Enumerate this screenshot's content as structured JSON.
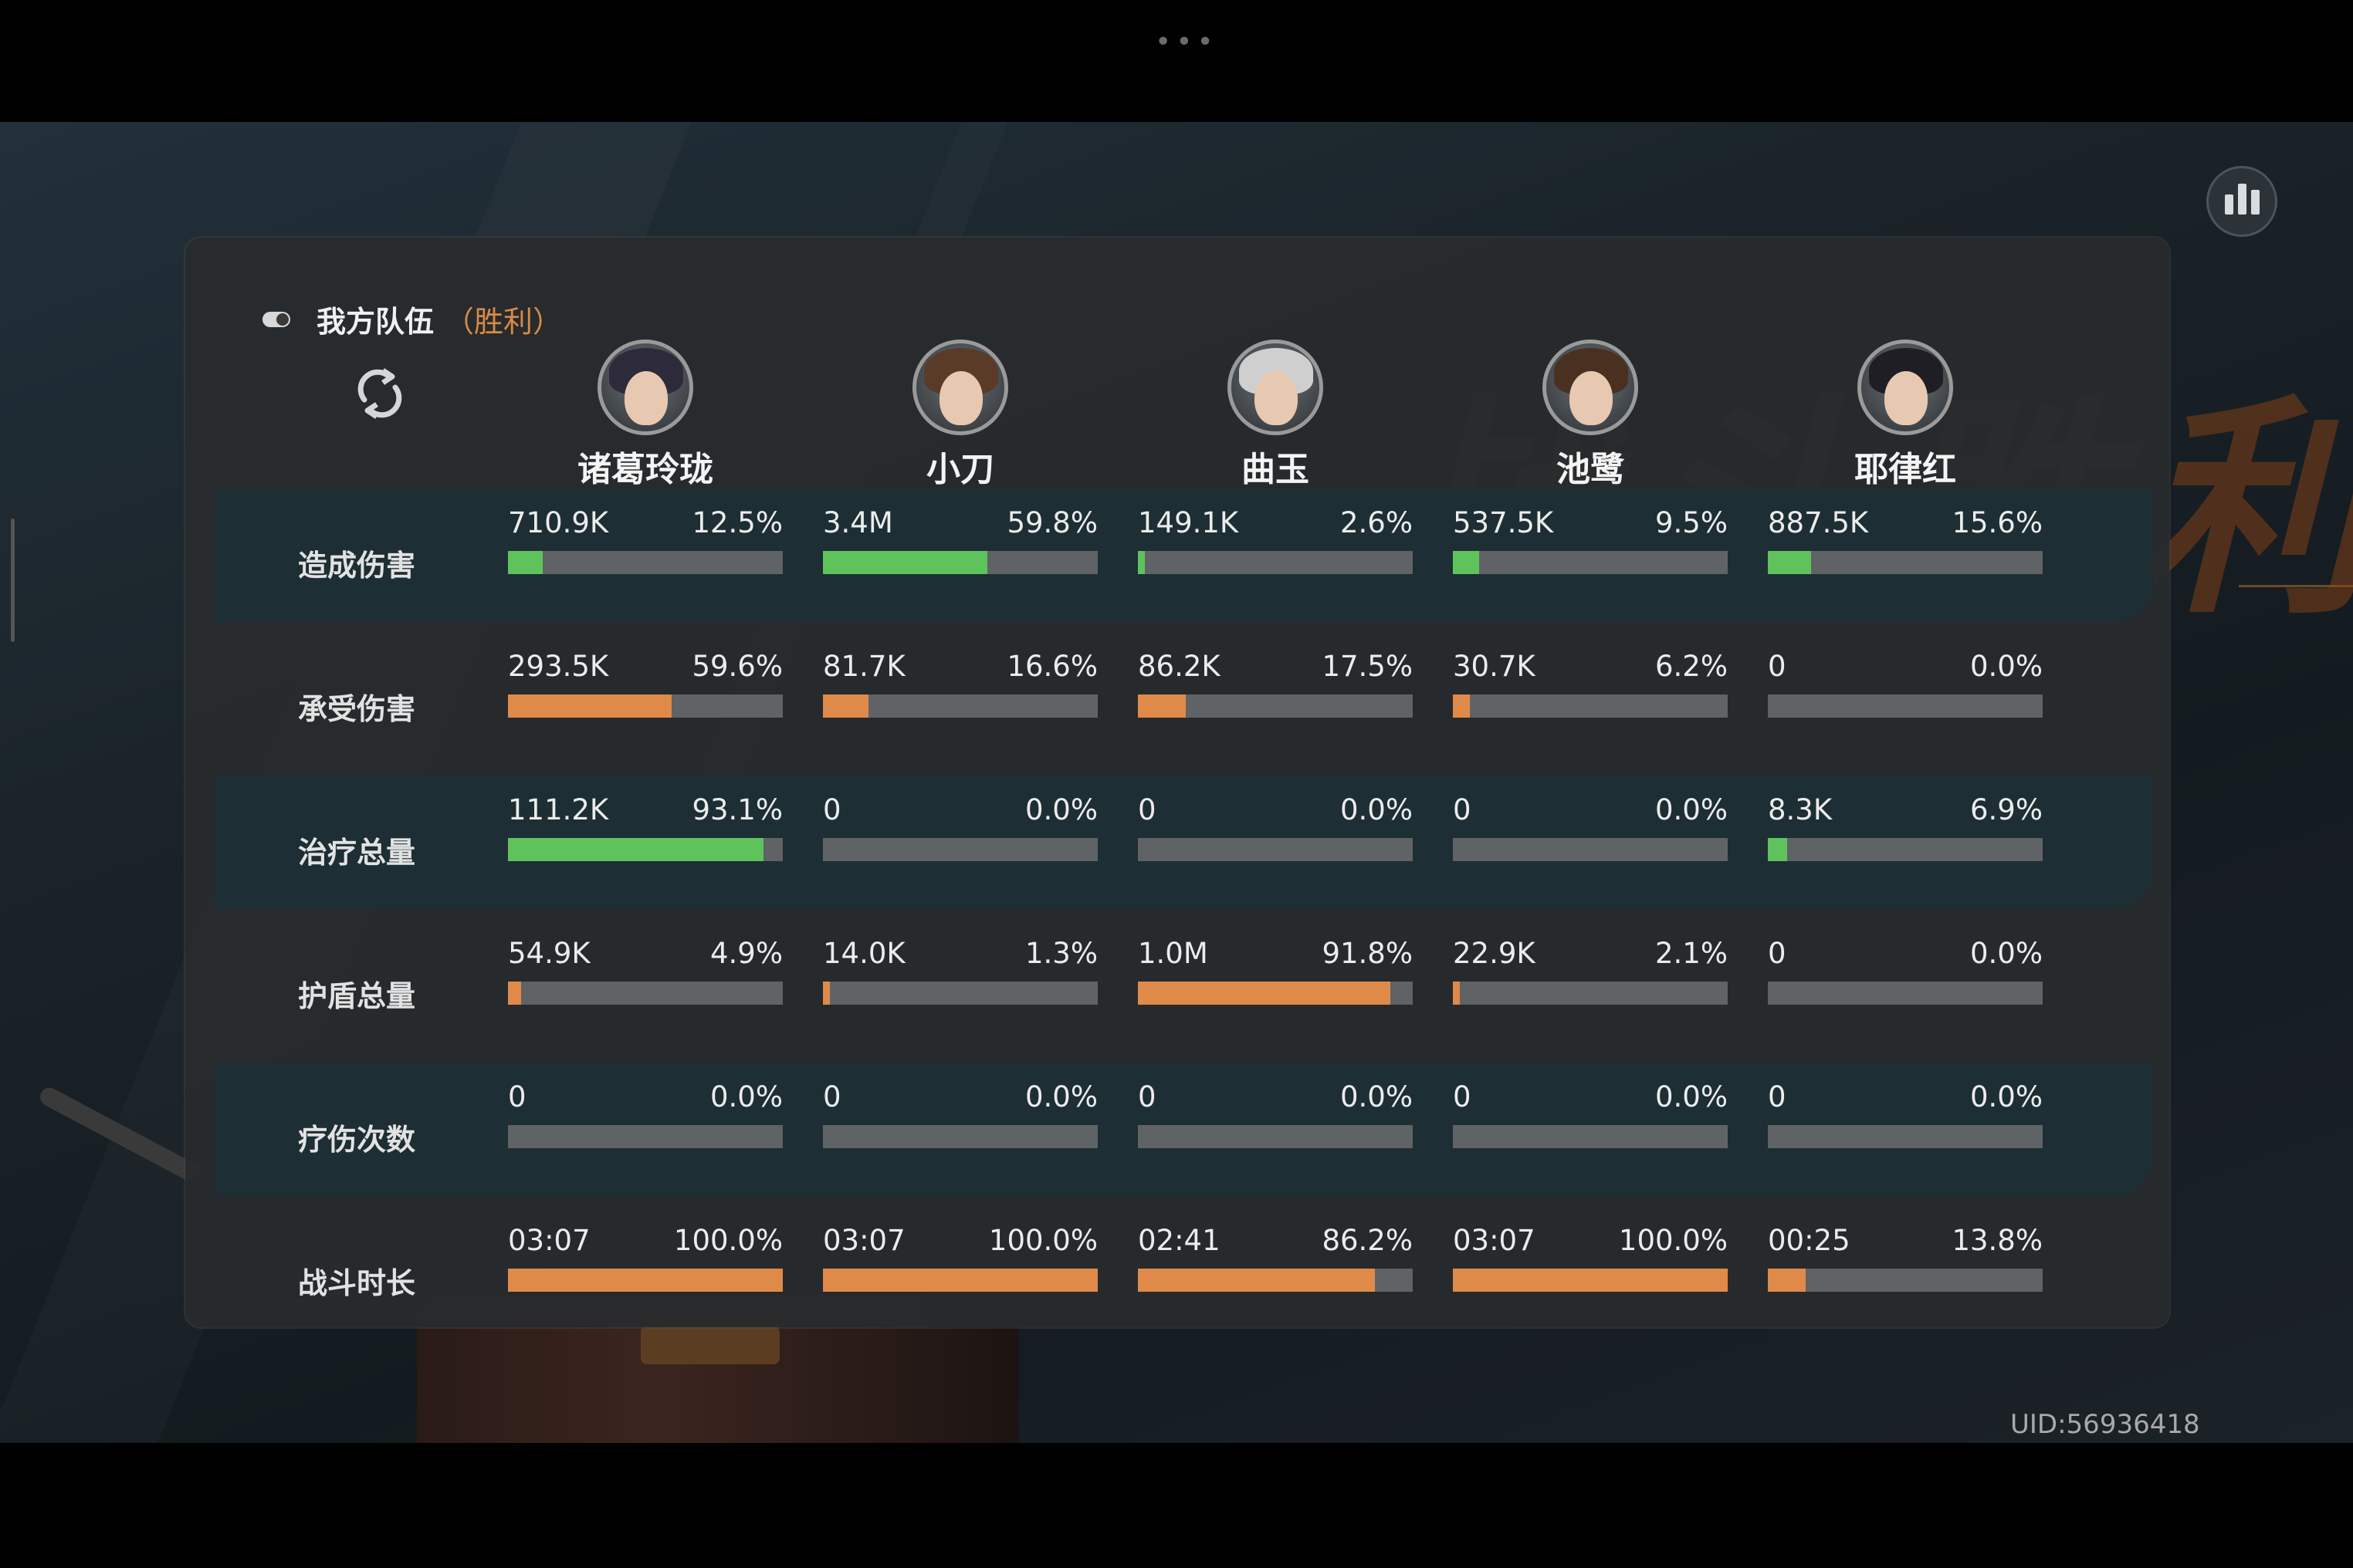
{
  "team": {
    "title": "我方队伍",
    "result": "（胜利）"
  },
  "heroes": [
    {
      "name": "诸葛玲珑"
    },
    {
      "name": "小刀"
    },
    {
      "name": "曲玉"
    },
    {
      "name": "池鹭"
    },
    {
      "name": "耶律红"
    }
  ],
  "rows": [
    {
      "label": "造成伤害",
      "type": "green",
      "cells": [
        {
          "value": "710.9K",
          "pct": "12.5%",
          "frac": 0.125
        },
        {
          "value": "3.4M",
          "pct": "59.8%",
          "frac": 0.598
        },
        {
          "value": "149.1K",
          "pct": "2.6%",
          "frac": 0.026
        },
        {
          "value": "537.5K",
          "pct": "9.5%",
          "frac": 0.095
        },
        {
          "value": "887.5K",
          "pct": "15.6%",
          "frac": 0.156
        }
      ]
    },
    {
      "label": "承受伤害",
      "type": "orange",
      "cells": [
        {
          "value": "293.5K",
          "pct": "59.6%",
          "frac": 0.596
        },
        {
          "value": "81.7K",
          "pct": "16.6%",
          "frac": 0.166
        },
        {
          "value": "86.2K",
          "pct": "17.5%",
          "frac": 0.175
        },
        {
          "value": "30.7K",
          "pct": "6.2%",
          "frac": 0.062
        },
        {
          "value": "0",
          "pct": "0.0%",
          "frac": 0
        }
      ]
    },
    {
      "label": "治疗总量",
      "type": "green",
      "cells": [
        {
          "value": "111.2K",
          "pct": "93.1%",
          "frac": 0.931
        },
        {
          "value": "0",
          "pct": "0.0%",
          "frac": 0
        },
        {
          "value": "0",
          "pct": "0.0%",
          "frac": 0
        },
        {
          "value": "0",
          "pct": "0.0%",
          "frac": 0
        },
        {
          "value": "8.3K",
          "pct": "6.9%",
          "frac": 0.069
        }
      ]
    },
    {
      "label": "护盾总量",
      "type": "orange",
      "cells": [
        {
          "value": "54.9K",
          "pct": "4.9%",
          "frac": 0.049
        },
        {
          "value": "14.0K",
          "pct": "1.3%",
          "frac": 0.013
        },
        {
          "value": "1.0M",
          "pct": "91.8%",
          "frac": 0.918
        },
        {
          "value": "22.9K",
          "pct": "2.1%",
          "frac": 0.021
        },
        {
          "value": "0",
          "pct": "0.0%",
          "frac": 0
        }
      ]
    },
    {
      "label": "疗伤次数",
      "type": "green",
      "cells": [
        {
          "value": "0",
          "pct": "0.0%",
          "frac": 0
        },
        {
          "value": "0",
          "pct": "0.0%",
          "frac": 0
        },
        {
          "value": "0",
          "pct": "0.0%",
          "frac": 0
        },
        {
          "value": "0",
          "pct": "0.0%",
          "frac": 0
        },
        {
          "value": "0",
          "pct": "0.0%",
          "frac": 0
        }
      ]
    },
    {
      "label": "战斗时长",
      "type": "orange",
      "cells": [
        {
          "value": "03:07",
          "pct": "100.0%",
          "frac": 1.0
        },
        {
          "value": "03:07",
          "pct": "100.0%",
          "frac": 1.0
        },
        {
          "value": "02:41",
          "pct": "86.2%",
          "frac": 0.862
        },
        {
          "value": "03:07",
          "pct": "100.0%",
          "frac": 1.0
        },
        {
          "value": "00:25",
          "pct": "13.8%",
          "frac": 0.138
        }
      ]
    }
  ],
  "colors": {
    "green": "#5fc35c",
    "orange": "#e08a4a",
    "track": "#5f6366"
  },
  "watermark": "战斗胜利",
  "uid": "UID:56936418"
}
